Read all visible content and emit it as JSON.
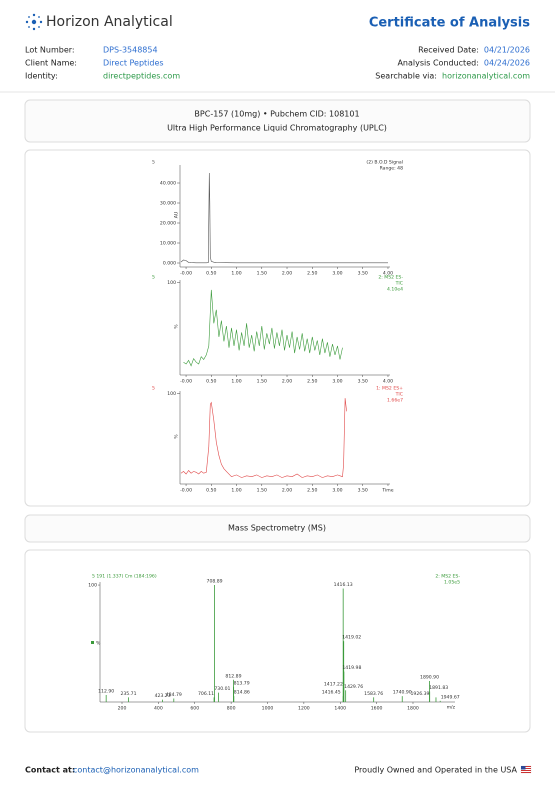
{
  "header": {
    "brand": "Horizon Analytical",
    "title": "Certificate of Analysis"
  },
  "info": {
    "left": [
      {
        "label": "Lot Number:",
        "value": "DPS-3548854"
      },
      {
        "label": "Client Name:",
        "value": "Direct Peptides"
      },
      {
        "label": "Identity:",
        "value": "directpeptides.com"
      }
    ],
    "right": [
      {
        "label": "Received Date:",
        "value": "04/21/2026"
      },
      {
        "label": "Analysis Conducted:",
        "value": "04/24/2026"
      },
      {
        "label": "Searchable via:",
        "value": "horizonanalytical.com"
      }
    ]
  },
  "uplc": {
    "line1": "BPC-157 (10mg) • Pubchem CID: 108101",
    "line2": "Ultra High Performance Liquid Chromatography (UPLC)"
  },
  "chromatogram": {
    "panels": [
      {
        "index_label": "5",
        "detector": [
          "(2) B.O.D Signal",
          "Range: 48"
        ],
        "y_label": "AU",
        "color": "#555555",
        "x": [
          -0.1,
          -0.05,
          0,
          0.05,
          0.1,
          0.2,
          0.3,
          0.4,
          0.44,
          0.46,
          0.47,
          0.48,
          0.5,
          0.55,
          0.6,
          1.0,
          2.0,
          3.0,
          4.0
        ],
        "values": [
          500,
          1500,
          1200,
          300,
          200,
          100,
          100,
          100,
          200,
          45000,
          30000,
          3000,
          800,
          400,
          200,
          100,
          100,
          100,
          100
        ],
        "xlim": [
          -0.12,
          4.04
        ],
        "ylim": [
          -1000,
          49000
        ],
        "xticks": [
          {
            "value": 0,
            "label": "-0.00"
          },
          {
            "value": 0.5,
            "label": "0.50"
          },
          {
            "value": 1,
            "label": "1.00"
          },
          {
            "value": 1.5,
            "label": "1.50"
          },
          {
            "value": 2,
            "label": "2.00"
          },
          {
            "value": 2.5,
            "label": "2.50"
          },
          {
            "value": 3,
            "label": "3.00"
          },
          {
            "value": 3.5,
            "label": "3.50"
          },
          {
            "value": 4,
            "label": "4.00"
          }
        ],
        "yticks": [
          {
            "value": 0,
            "label": "0.000"
          },
          {
            "value": 10000,
            "label": "10.000"
          },
          {
            "value": 20000,
            "label": "20.000"
          },
          {
            "value": 30000,
            "label": "30.000"
          },
          {
            "value": 40000,
            "label": "40.000"
          }
        ]
      },
      {
        "index_label": "5",
        "detector": [
          "2: MS2 ES-",
          "TIC",
          "4.10e4"
        ],
        "y_label": "%",
        "color": "#3a9a3a",
        "x": [
          -0.05,
          0,
          0.05,
          0.1,
          0.15,
          0.2,
          0.25,
          0.3,
          0.35,
          0.4,
          0.45,
          0.5,
          0.55,
          0.6,
          0.65,
          0.7,
          0.75,
          0.8,
          0.85,
          0.9,
          0.95,
          1.0,
          1.05,
          1.1,
          1.15,
          1.2,
          1.25,
          1.3,
          1.35,
          1.4,
          1.45,
          1.5,
          1.55,
          1.6,
          1.65,
          1.7,
          1.75,
          1.8,
          1.85,
          1.9,
          1.95,
          2.0,
          2.05,
          2.1,
          2.15,
          2.2,
          2.25,
          2.3,
          2.35,
          2.4,
          2.45,
          2.5,
          2.55,
          2.6,
          2.65,
          2.7,
          2.75,
          2.8,
          2.85,
          2.9,
          2.95,
          3.0,
          3.05,
          3.1
        ],
        "values": [
          12,
          10,
          14,
          8,
          16,
          12,
          10,
          18,
          15,
          20,
          30,
          92,
          55,
          70,
          40,
          58,
          35,
          52,
          28,
          50,
          30,
          48,
          25,
          45,
          30,
          55,
          28,
          42,
          24,
          46,
          30,
          52,
          26,
          44,
          32,
          50,
          27,
          45,
          30,
          48,
          25,
          42,
          28,
          46,
          22,
          40,
          26,
          44,
          24,
          38,
          22,
          40,
          25,
          36,
          20,
          38,
          22,
          34,
          18,
          32,
          20,
          30,
          15,
          28
        ],
        "xlim": [
          -0.12,
          4.04
        ],
        "ylim": [
          0,
          103
        ],
        "xticks": [
          {
            "value": 0,
            "label": "-0.00"
          },
          {
            "value": 0.5,
            "label": "0.50"
          },
          {
            "value": 1,
            "label": "1.00"
          },
          {
            "value": 1.5,
            "label": "1.50"
          },
          {
            "value": 2,
            "label": "2.00"
          },
          {
            "value": 2.5,
            "label": "2.50"
          },
          {
            "value": 3,
            "label": "3.00"
          },
          {
            "value": 3.5,
            "label": "3.50"
          },
          {
            "value": 4,
            "label": "4.00"
          }
        ],
        "yticks": [
          100
        ]
      },
      {
        "index_label": "5",
        "detector": [
          "1: MS2 ES+",
          "TIC",
          "1.66e7"
        ],
        "y_label": "%",
        "color": "#e04848",
        "x": [
          -0.1,
          -0.05,
          0,
          0.05,
          0.1,
          0.15,
          0.2,
          0.25,
          0.3,
          0.35,
          0.4,
          0.45,
          0.48,
          0.5,
          0.55,
          0.6,
          0.65,
          0.7,
          0.75,
          0.8,
          0.9,
          1.0,
          1.1,
          1.2,
          1.3,
          1.4,
          1.5,
          1.6,
          1.7,
          1.8,
          1.9,
          2.0,
          2.1,
          2.2,
          2.3,
          2.4,
          2.5,
          2.6,
          2.7,
          2.8,
          2.9,
          3.0,
          3.05,
          3.1,
          3.12,
          3.15,
          3.18
        ],
        "values": [
          10,
          12,
          9,
          13,
          10,
          12,
          11,
          9,
          12,
          10,
          11,
          40,
          88,
          90,
          70,
          45,
          30,
          20,
          15,
          12,
          6,
          8,
          5,
          7,
          6,
          8,
          5,
          7,
          6,
          8,
          5,
          7,
          6,
          9,
          5,
          7,
          6,
          8,
          5,
          7,
          6,
          8,
          7,
          6,
          20,
          95,
          80
        ],
        "xlim": [
          -0.12,
          4.04
        ],
        "ylim": [
          0,
          103
        ],
        "xticks": [
          {
            "value": 0,
            "label": "-0.00"
          },
          {
            "value": 0.5,
            "label": "0.50"
          },
          {
            "value": 1,
            "label": "1.00"
          },
          {
            "value": 1.5,
            "label": "1.50"
          },
          {
            "value": 2,
            "label": "2.00"
          },
          {
            "value": 2.5,
            "label": "2.50"
          },
          {
            "value": 3,
            "label": "3.00"
          },
          {
            "value": 3.5,
            "label": "3.50"
          },
          {
            "value": 4,
            "label": "Time"
          }
        ],
        "yticks": [
          100
        ]
      }
    ]
  },
  "ms": {
    "title": "Mass Spectrometry (MS)",
    "header_left": "5 191 (1.337) Cm (184:196)",
    "header_right": [
      "2: MS2 ES-",
      "1.05e5"
    ],
    "color": "#3a9a3a",
    "x_label": "m/z",
    "y_label": "%",
    "xlim": [
      79,
      2031
    ],
    "ylim": [
      0,
      102.6
    ],
    "xticks": [
      200,
      400,
      600,
      800,
      1000,
      1200,
      1400,
      1600,
      1800
    ],
    "yticks": [
      100
    ],
    "peaks": {
      "x": [
        112.9,
        235.71,
        423.23,
        484.79,
        706.11,
        708.89,
        730.01,
        812.89,
        813.79,
        814.86,
        1416.13,
        1416.45,
        1417.22,
        1419.02,
        1419.98,
        1429.76,
        1583.76,
        1740.9,
        1890.9,
        1891.83,
        1926.39,
        1949.67
      ],
      "x_labels": [
        "112.90",
        "235.71",
        "423.23",
        "484.79",
        "706.11",
        "708.89",
        "730.01",
        "812.89",
        "813.79",
        "814.86",
        "1416.13",
        "1416.45",
        "1417.22",
        "1419.02",
        "1419.98",
        "1429.76",
        "1583.76",
        "1740.90",
        "1890.90",
        "1891.83",
        "1926.39",
        "1949.67"
      ],
      "values": [
        6,
        4,
        2,
        3,
        4,
        100,
        8,
        19,
        13,
        5,
        97,
        5,
        12,
        52,
        26,
        10,
        4,
        5,
        18,
        9,
        4,
        1
      ]
    }
  },
  "footer": {
    "contact_label": "Contact at:",
    "contact_email": "contact@horizonanalytical.com",
    "tagline": "Proudly Owned and Operated in the USA"
  }
}
